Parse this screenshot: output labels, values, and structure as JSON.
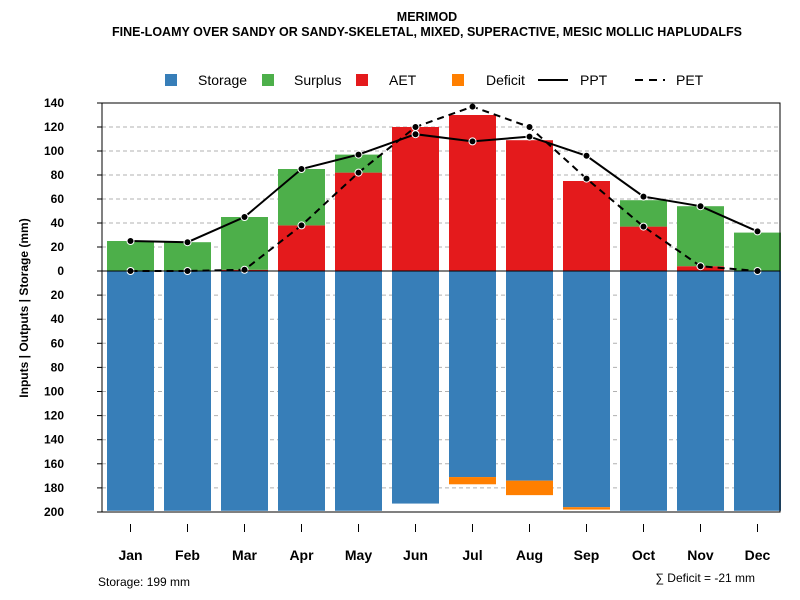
{
  "chart_data": {
    "type": "bar",
    "title": "MERIMOD",
    "subtitle": "FINE-LOAMY OVER SANDY OR SANDY-SKELETAL, MIXED, SUPERACTIVE, MESIC MOLLIC HAPLUDALFS",
    "ylabel": "Inputs | Outputs | Storage    (mm)",
    "ylim": [
      -200,
      140
    ],
    "yticks": [
      140,
      120,
      100,
      80,
      60,
      40,
      20,
      0,
      -20,
      -40,
      -60,
      -80,
      -100,
      -120,
      -140,
      -160,
      -180,
      -200
    ],
    "ytick_labels": [
      "140",
      "120",
      "100",
      "80",
      "60",
      "40",
      "20",
      "0",
      "20",
      "40",
      "60",
      "80",
      "100",
      "120",
      "140",
      "160",
      "180",
      "200"
    ],
    "grid": true,
    "categories": [
      "Jan",
      "Feb",
      "Mar",
      "Apr",
      "May",
      "Jun",
      "Jul",
      "Aug",
      "Sep",
      "Oct",
      "Nov",
      "Dec"
    ],
    "legend": [
      "Storage",
      "Surplus",
      "AET",
      "Deficit",
      "PPT",
      "PET"
    ],
    "colors": {
      "Storage": "#377eb8",
      "Surplus": "#4daf4a",
      "AET": "#e41a1c",
      "Deficit": "#ff7f00",
      "PPT": "#000000",
      "PET": "#000000",
      "grid": "#b0b0b0"
    },
    "series": [
      {
        "name": "Storage",
        "values": [
          199,
          199,
          199,
          199,
          199,
          193,
          171,
          174,
          196,
          199,
          199,
          199
        ]
      },
      {
        "name": "Deficit",
        "values": [
          0,
          0,
          0,
          0,
          0,
          0,
          6,
          12,
          2,
          0,
          0,
          0
        ]
      },
      {
        "name": "AET",
        "values": [
          0,
          0,
          1,
          38,
          82,
          120,
          130,
          109,
          75,
          37,
          4,
          0
        ]
      },
      {
        "name": "Surplus",
        "values": [
          25,
          24,
          44,
          47,
          15,
          0,
          0,
          0,
          0,
          22,
          50,
          32
        ]
      },
      {
        "name": "PPT",
        "values": [
          25,
          24,
          45,
          85,
          97,
          114,
          108,
          112,
          96,
          62,
          54,
          33
        ]
      },
      {
        "name": "PET",
        "values": [
          0,
          0,
          1,
          38,
          82,
          120,
          137,
          120,
          77,
          37,
          4,
          0
        ]
      }
    ],
    "annotations": {
      "storage": "Storage: 199 mm",
      "deficit": "∑ Deficit = -21 mm"
    }
  }
}
